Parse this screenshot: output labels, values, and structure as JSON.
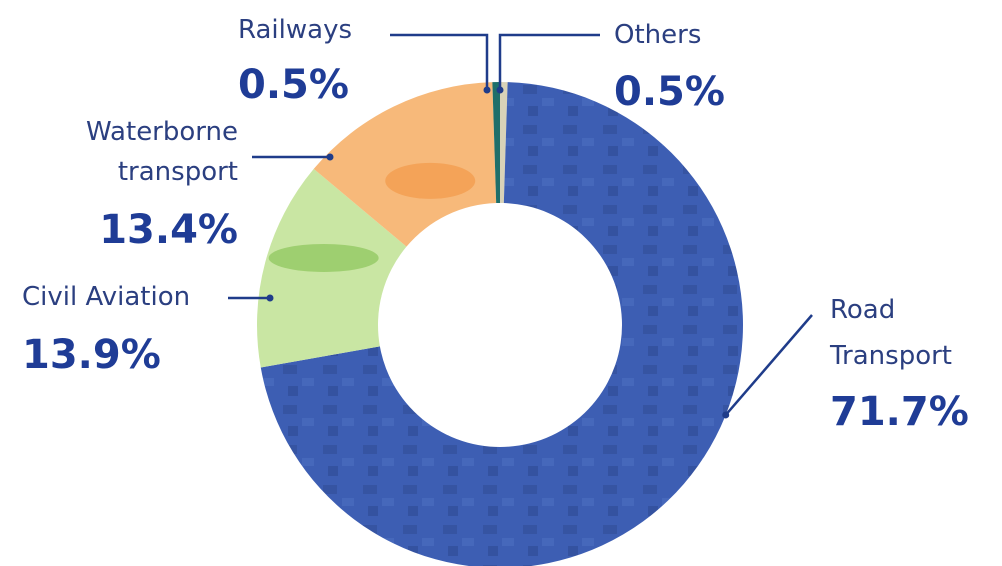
{
  "chart_data": {
    "type": "pie",
    "donut": true,
    "categories": [
      "Road Transport",
      "Civil Aviation",
      "Waterborne transport",
      "Railways",
      "Others"
    ],
    "values": [
      71.7,
      13.9,
      13.4,
      0.5,
      0.5
    ],
    "value_labels": [
      "71.7%",
      "13.9%",
      "13.4%",
      "0.5%",
      "0.5%"
    ],
    "label_lines": [
      [
        "Road",
        "Transport"
      ],
      [
        "Civil Aviation"
      ],
      [
        "Waterborne",
        "transport"
      ],
      [
        "Railways"
      ],
      [
        "Others"
      ]
    ],
    "colors": [
      "#3d5eb3",
      "#c9e6a3",
      "#f7b97a",
      "#1f6f6a",
      "#d8d2b8"
    ],
    "start": "12 o'clock",
    "direction": "clockwise",
    "legend": "none"
  }
}
